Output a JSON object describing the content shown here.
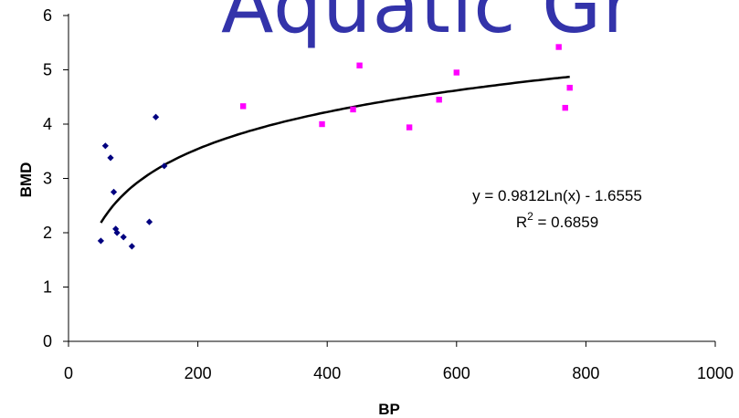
{
  "banner_text": "Aquatic Gr",
  "chart_data": {
    "type": "scatter",
    "xlabel": "BP",
    "ylabel": "BMD",
    "xlim": [
      0,
      1000
    ],
    "ylim": [
      0,
      6
    ],
    "xticks": [
      0,
      200,
      400,
      600,
      800,
      1000
    ],
    "yticks": [
      0,
      1,
      2,
      3,
      4,
      5,
      6
    ],
    "grid": false,
    "series": [
      {
        "color": "#000080",
        "marker": "diamond",
        "points": [
          [
            50,
            1.85
          ],
          [
            57,
            3.6
          ],
          [
            65,
            3.38
          ],
          [
            70,
            2.75
          ],
          [
            73,
            2.07
          ],
          [
            75,
            2.0
          ],
          [
            85,
            1.92
          ],
          [
            98,
            1.75
          ],
          [
            125,
            2.2
          ],
          [
            135,
            4.13
          ],
          [
            148,
            3.23
          ]
        ]
      },
      {
        "color": "#ff00ff",
        "marker": "square",
        "points": [
          [
            270,
            4.33
          ],
          [
            392,
            4.0
          ],
          [
            440,
            4.27
          ],
          [
            450,
            5.08
          ],
          [
            527,
            3.94
          ],
          [
            573,
            4.45
          ],
          [
            600,
            4.95
          ],
          [
            758,
            5.42
          ],
          [
            768,
            4.3
          ],
          [
            775,
            4.67
          ]
        ]
      }
    ],
    "trendline": {
      "type": "logarithmic",
      "a": 0.9812,
      "b": -1.6555,
      "x_range": [
        50,
        775
      ],
      "color": "#000000",
      "equation": "y = 0.9812Ln(x) - 1.6555",
      "r2_prefix": "R",
      "r2_exp": "2",
      "r2_value": " = 0.6859"
    }
  }
}
